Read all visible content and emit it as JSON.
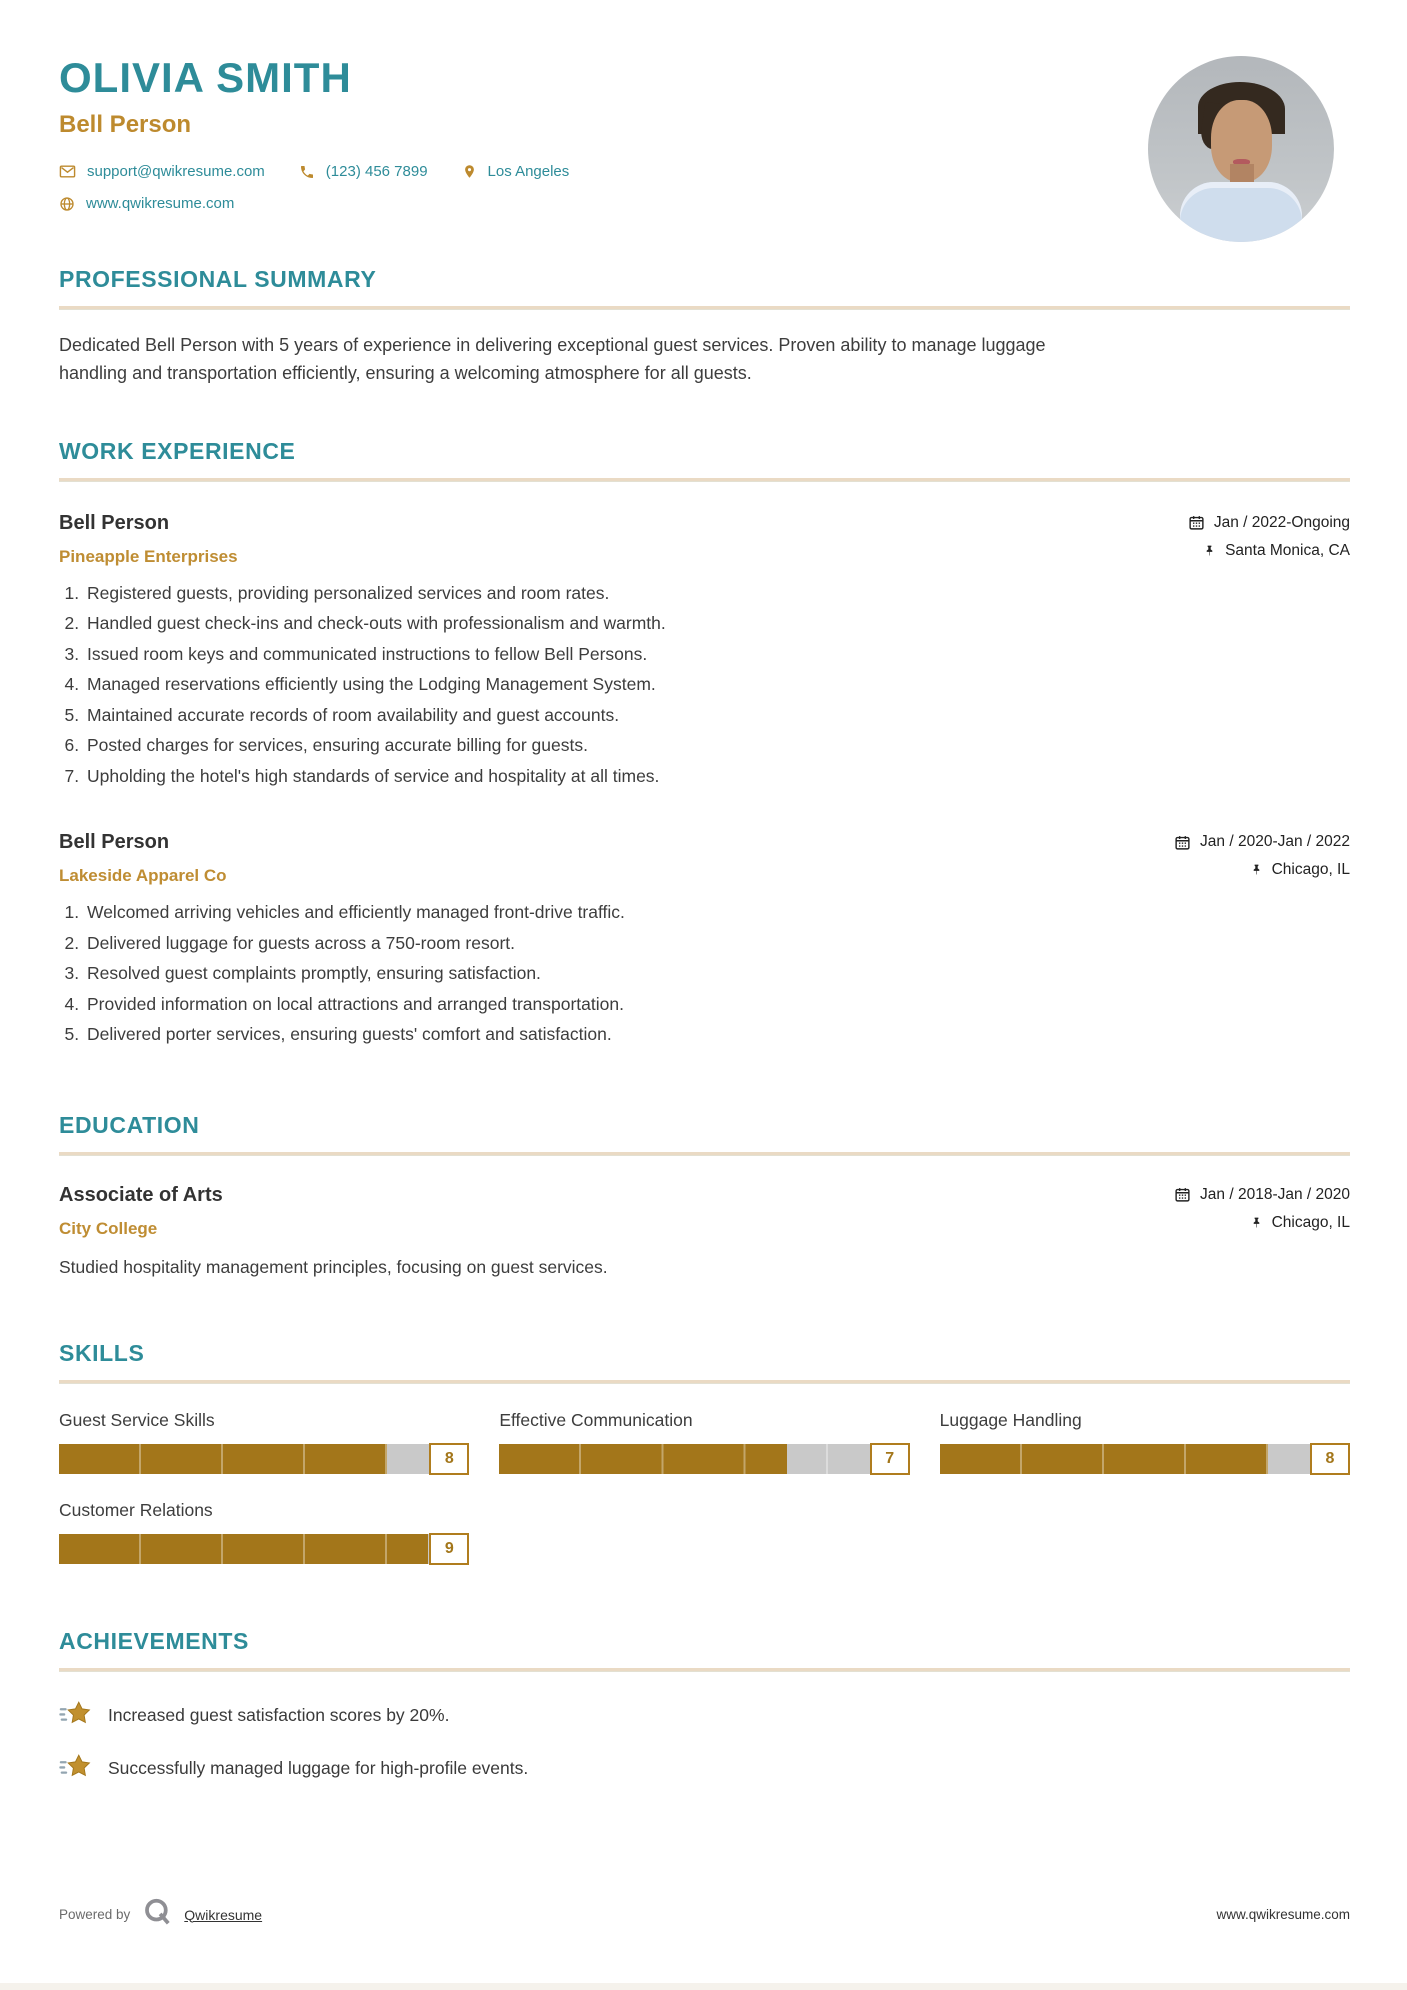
{
  "header": {
    "name": "OLIVIA SMITH",
    "title": "Bell Person",
    "contact": {
      "email": "support@qwikresume.com",
      "phone": "(123) 456 7899",
      "location": "Los Angeles",
      "website": "www.qwikresume.com"
    }
  },
  "summary": {
    "heading": "PROFESSIONAL SUMMARY",
    "text": "Dedicated Bell Person with 5 years of experience in delivering exceptional guest services. Proven ability to manage luggage handling and transportation efficiently, ensuring a welcoming atmosphere for all guests."
  },
  "experience": {
    "heading": "WORK EXPERIENCE",
    "jobs": [
      {
        "title": "Bell Person",
        "company": "Pineapple Enterprises",
        "dates": "Jan / 2022-Ongoing",
        "location": "Santa Monica, CA",
        "bullets": [
          "Registered guests, providing personalized services and room rates.",
          "Handled guest check-ins and check-outs with professionalism and warmth.",
          "Issued room keys and communicated instructions to fellow Bell Persons.",
          "Managed reservations efficiently using the Lodging Management System.",
          "Maintained accurate records of room availability and guest accounts.",
          "Posted charges for services, ensuring accurate billing for guests.",
          "Upholding the hotel's high standards of service and hospitality at all times."
        ]
      },
      {
        "title": "Bell Person",
        "company": "Lakeside Apparel Co",
        "dates": "Jan / 2020-Jan / 2022",
        "location": "Chicago, IL",
        "bullets": [
          "Welcomed arriving vehicles and efficiently managed front-drive traffic.",
          "Delivered luggage for guests across a 750-room resort.",
          "Resolved guest complaints promptly, ensuring satisfaction.",
          "Provided information on local attractions and arranged transportation.",
          "Delivered porter services, ensuring guests' comfort and satisfaction."
        ]
      }
    ]
  },
  "education": {
    "heading": "EDUCATION",
    "degree": "Associate of Arts",
    "school": "City College",
    "dates": "Jan / 2018-Jan / 2020",
    "location": "Chicago, IL",
    "description": "Studied hospitality management principles, focusing on guest services."
  },
  "skills": {
    "heading": "SKILLS",
    "items": [
      {
        "name": "Guest Service Skills",
        "level": 8
      },
      {
        "name": "Effective Communication",
        "level": 7
      },
      {
        "name": "Luggage Handling",
        "level": 8
      },
      {
        "name": "Customer Relations",
        "level": 9
      }
    ]
  },
  "achievements": {
    "heading": "ACHIEVEMENTS",
    "items": [
      "Increased guest satisfaction scores by 20%.",
      "Successfully managed luggage for high-profile events."
    ]
  },
  "footer": {
    "powered_by": "Powered by",
    "brand": "Qwikresume",
    "website": "www.qwikresume.com"
  },
  "colors": {
    "accent_teal": "#2e8c99",
    "accent_gold": "#bf8d33",
    "bar_fill": "#a3761a",
    "bar_track": "#c9c9c9",
    "divider": "#eadac4"
  }
}
